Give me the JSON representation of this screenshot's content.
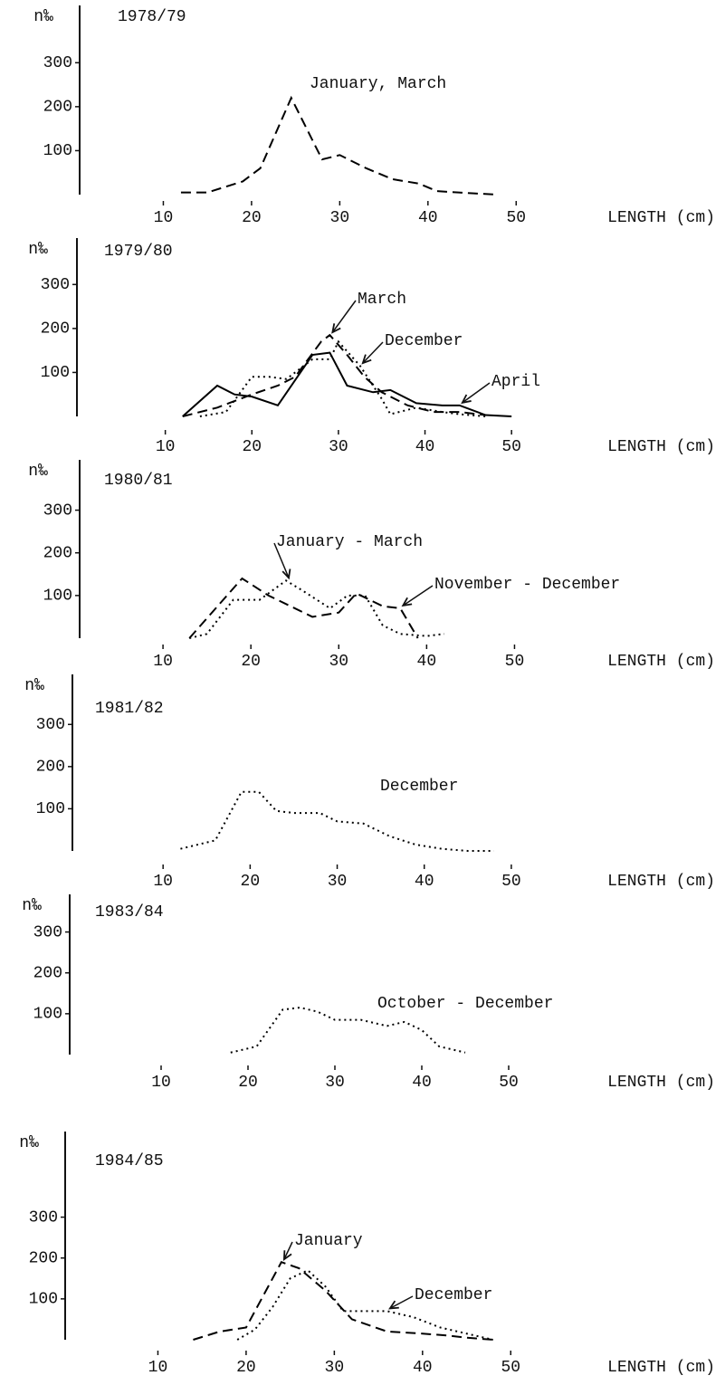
{
  "chart_data": [
    {
      "type": "line",
      "title": "1978/79",
      "ylabel": "n‰",
      "xlabel": "LENGTH (cm)",
      "xlim": [
        0,
        55
      ],
      "ylim": [
        0,
        350
      ],
      "xticks": [
        10,
        20,
        30,
        40,
        50
      ],
      "yticks": [
        100,
        200,
        300
      ],
      "series": [
        {
          "name": "January, March",
          "color": "#000000",
          "style": "dashed",
          "x": [
            12,
            15,
            19,
            21,
            24.5,
            28,
            30,
            33,
            36,
            39,
            41,
            45,
            48
          ],
          "values": [
            5,
            5,
            30,
            60,
            220,
            80,
            90,
            60,
            35,
            25,
            8,
            3,
            0
          ]
        }
      ]
    },
    {
      "type": "line",
      "title": "1979/80",
      "ylabel": "n‰",
      "xlabel": "LENGTH (cm)",
      "xlim": [
        0,
        55
      ],
      "ylim": [
        0,
        350
      ],
      "xticks": [
        10,
        20,
        30,
        40,
        50
      ],
      "yticks": [
        100,
        200,
        300
      ],
      "series": [
        {
          "name": "March",
          "color": "#000000",
          "style": "dashed",
          "x": [
            12,
            16,
            20,
            23,
            25,
            28,
            29,
            31,
            33,
            35,
            38,
            41,
            44,
            47
          ],
          "values": [
            0,
            20,
            50,
            70,
            90,
            170,
            185,
            140,
            90,
            55,
            25,
            10,
            10,
            3
          ]
        },
        {
          "name": "December",
          "color": "#000000",
          "style": "dotted",
          "x": [
            14,
            17,
            20,
            22,
            24,
            27,
            29,
            30,
            32.5,
            35,
            36,
            39,
            42,
            44,
            47
          ],
          "values": [
            0,
            10,
            90,
            90,
            85,
            130,
            130,
            170,
            115,
            40,
            5,
            20,
            10,
            5,
            0
          ]
        },
        {
          "name": "April",
          "color": "#000000",
          "style": "solid",
          "x": [
            12,
            16,
            18,
            20,
            23,
            27,
            29,
            31,
            34,
            36,
            39,
            42,
            44,
            47,
            50
          ],
          "values": [
            0,
            70,
            50,
            45,
            25,
            140,
            145,
            70,
            55,
            60,
            30,
            25,
            25,
            3,
            0
          ]
        }
      ]
    },
    {
      "type": "line",
      "title": "1980/81",
      "ylabel": "n‰",
      "xlabel": "LENGTH (cm)",
      "xlim": [
        0,
        55
      ],
      "ylim": [
        0,
        350
      ],
      "xticks": [
        10,
        20,
        30,
        40,
        50
      ],
      "yticks": [
        100,
        200,
        300
      ],
      "series": [
        {
          "name": "January - March",
          "color": "#000000",
          "style": "dotted",
          "x": [
            13,
            15,
            18,
            21,
            24,
            26,
            29,
            31,
            33,
            35,
            37,
            40,
            42
          ],
          "values": [
            0,
            10,
            90,
            90,
            135,
            110,
            70,
            100,
            100,
            30,
            10,
            5,
            10
          ]
        },
        {
          "name": "November - December",
          "color": "#000000",
          "style": "dashed",
          "x": [
            13,
            19,
            22,
            27,
            30,
            32,
            35,
            37,
            39
          ],
          "values": [
            0,
            140,
            100,
            50,
            60,
            105,
            75,
            70,
            0
          ]
        }
      ]
    },
    {
      "type": "line",
      "title": "1981/82",
      "ylabel": "n‰",
      "xlabel": "LENGTH (cm)",
      "xlim": [
        0,
        55
      ],
      "ylim": [
        0,
        350
      ],
      "xticks": [
        10,
        20,
        30,
        40,
        50
      ],
      "yticks": [
        100,
        200,
        300
      ],
      "series": [
        {
          "name": "December",
          "color": "#000000",
          "style": "dotted",
          "x": [
            12,
            16,
            19,
            21,
            23,
            25,
            28,
            30,
            33,
            36,
            39,
            42,
            45,
            48
          ],
          "values": [
            5,
            25,
            140,
            140,
            95,
            90,
            90,
            70,
            65,
            35,
            15,
            5,
            0,
            0
          ]
        }
      ]
    },
    {
      "type": "line",
      "title": "1983/84",
      "ylabel": "n‰",
      "xlabel": "LENGTH (cm)",
      "xlim": [
        0,
        55
      ],
      "ylim": [
        0,
        350
      ],
      "xticks": [
        10,
        20,
        30,
        40,
        50
      ],
      "yticks": [
        100,
        200,
        300
      ],
      "series": [
        {
          "name": "October - December",
          "color": "#000000",
          "style": "dotted",
          "x": [
            18,
            21,
            24,
            26,
            28,
            30,
            33,
            36,
            38,
            40,
            42,
            45
          ],
          "values": [
            5,
            20,
            110,
            115,
            105,
            85,
            85,
            70,
            80,
            60,
            20,
            5
          ]
        }
      ]
    },
    {
      "type": "line",
      "title": "1984/85",
      "ylabel": "n‰",
      "xlabel": "LENGTH (cm)",
      "xlim": [
        0,
        55
      ],
      "ylim": [
        0,
        350
      ],
      "xticks": [
        10,
        20,
        30,
        40,
        50
      ],
      "yticks": [
        100,
        200,
        300
      ],
      "series": [
        {
          "name": "January",
          "color": "#000000",
          "style": "dashed",
          "x": [
            14,
            17,
            20,
            24,
            26,
            29,
            32,
            34,
            36,
            40,
            43,
            45,
            48
          ],
          "values": [
            0,
            20,
            30,
            190,
            175,
            120,
            50,
            35,
            20,
            15,
            10,
            5,
            0
          ]
        },
        {
          "name": "December",
          "color": "#000000",
          "style": "dotted",
          "x": [
            19,
            21,
            23,
            25,
            27,
            29,
            31,
            33,
            36,
            39,
            42,
            45,
            48
          ],
          "values": [
            0,
            25,
            80,
            150,
            170,
            130,
            70,
            70,
            70,
            55,
            30,
            15,
            0
          ]
        }
      ]
    }
  ]
}
